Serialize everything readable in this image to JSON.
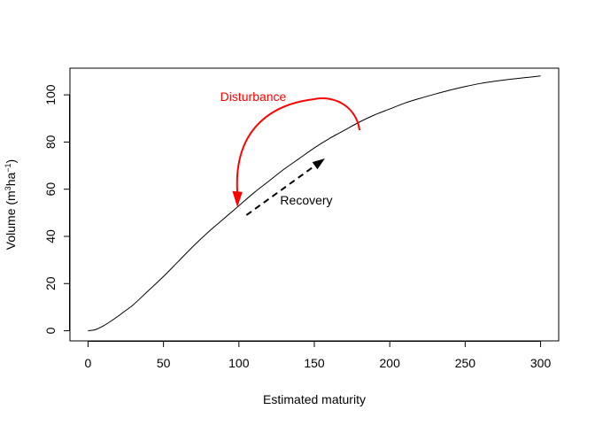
{
  "chart_data": {
    "type": "line",
    "title": "",
    "xlabel": "Estimated maturity",
    "ylabel": {
      "prefix": "Volume (m",
      "sup1": "3",
      "middle": "ha",
      "sup2": "−1",
      "suffix": ")"
    },
    "xlim": [
      -12,
      312
    ],
    "ylim": [
      -4.3,
      111.3
    ],
    "xticks": [
      0,
      50,
      100,
      150,
      200,
      250,
      300
    ],
    "yticks": [
      0,
      20,
      40,
      60,
      80,
      100
    ],
    "grid": false,
    "series": [
      {
        "color": "#000000",
        "x": [
          0,
          5,
          10,
          15,
          20,
          25,
          30,
          40,
          50,
          60,
          70,
          80,
          90,
          100,
          110,
          120,
          130,
          140,
          150,
          160,
          170,
          180,
          190,
          200,
          210,
          220,
          230,
          240,
          250,
          260,
          270,
          280,
          290,
          300
        ],
        "y": [
          0,
          0.5,
          2,
          4,
          6.2,
          8.6,
          11,
          17,
          23,
          29.5,
          36,
          42,
          47.5,
          53,
          58.5,
          63.5,
          68.5,
          73,
          77.5,
          81.5,
          85,
          88.5,
          91.5,
          94,
          96.5,
          98.5,
          100.3,
          102,
          103.5,
          104.8,
          105.8,
          106.6,
          107.3,
          108
        ]
      }
    ],
    "annotations": {
      "disturbance": {
        "label": "Disturbance",
        "color": "#ff0000",
        "style": "solid arrow",
        "from": [
          180,
          85
        ],
        "to": [
          99,
          53
        ]
      },
      "recovery": {
        "label": "Recovery",
        "color": "#000000",
        "style": "dashed arrow",
        "from": [
          105,
          49
        ],
        "to": [
          157,
          73
        ]
      }
    }
  }
}
